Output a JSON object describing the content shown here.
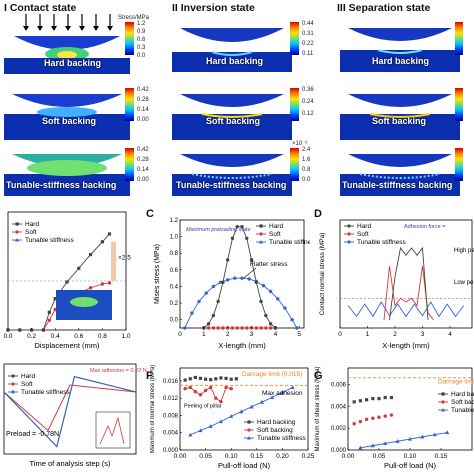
{
  "states": {
    "contact": "I Contact state",
    "inversion": "II Inversion state",
    "separation": "III Separation state"
  },
  "stress_unit": "Stress/MPa",
  "backings": {
    "hard": "Hard backing",
    "soft": "Soft backing",
    "tunable": "Tunable-stiffness backing"
  },
  "colorbars": {
    "r1c1": [
      "1.2",
      "0.9",
      "0.6",
      "0.3",
      "0.0"
    ],
    "r1c2": [
      "0.44",
      "0.31",
      "0.22",
      "0.11"
    ],
    "r1c3": [
      "0.42",
      "0.28",
      "0.14"
    ],
    "r2c1": [
      "0.42",
      "0.28",
      "0.14",
      "0.00"
    ],
    "r2c2": [
      "0.36",
      "0.24",
      "0.12"
    ],
    "r3c1": [
      "0.42",
      "0.28",
      "0.14",
      "0.00"
    ],
    "r3c2_exp": "×10⁻²",
    "r3c2": [
      "2.4",
      "1.6",
      "0.8",
      "0.0"
    ]
  },
  "panel_labels": [
    "C",
    "D",
    "F",
    "G"
  ],
  "chart_data": [
    {
      "panel": "B (partial)",
      "type": "line",
      "xlabel": "Displacement (mm)",
      "xticks": [
        "0.0",
        "0.2",
        "0.4",
        "0.6",
        "0.8",
        "1.0"
      ],
      "annotation": "×2.5",
      "series": [
        {
          "name": "Hard",
          "x": [
            0.0,
            0.1,
            0.2,
            0.3,
            0.35,
            0.4,
            0.5,
            0.6,
            0.7,
            0.8,
            0.86
          ],
          "y": [
            0,
            0,
            0,
            0,
            0.18,
            0.32,
            0.49,
            0.63,
            0.77,
            0.9,
            0.98
          ]
        },
        {
          "name": "Soft",
          "x": [
            0.0,
            0.1,
            0.2,
            0.3,
            0.35,
            0.4,
            0.5,
            0.6,
            0.7,
            0.8,
            0.86
          ],
          "y": [
            0,
            0,
            0,
            0,
            0.1,
            0.21,
            0.31,
            0.38,
            0.43,
            0.47,
            0.48
          ]
        },
        {
          "name": "Tunable stiffness",
          "x": [
            0.0,
            0.1,
            0.2,
            0.3,
            0.35,
            0.4,
            0.5,
            0.6,
            0.7,
            0.8,
            0.86
          ],
          "y": [
            0,
            0,
            0,
            0,
            0.18,
            0.32,
            0.49,
            0.63,
            0.77,
            0.9,
            0.98
          ]
        }
      ]
    },
    {
      "panel": "C",
      "type": "line",
      "xlabel": "X-length (mm)",
      "ylabel": "Mises stress (MPa)",
      "xticks": [
        "0",
        "1",
        "2",
        "3",
        "4",
        "5"
      ],
      "yticks": [
        "0.0",
        "0.2",
        "0.4",
        "0.6",
        "0.8",
        "1.0",
        "1.2"
      ],
      "xlim": [
        0,
        5.2
      ],
      "ylim": [
        0,
        1.3
      ],
      "annotations": [
        "Maximum preloading state",
        "Flatter stress"
      ],
      "series": [
        {
          "name": "Hard",
          "x": [
            1.0,
            1.2,
            1.4,
            1.6,
            1.8,
            2.0,
            2.2,
            2.4,
            2.6,
            2.8,
            3.0,
            3.2,
            3.4,
            3.6,
            3.8,
            4.0
          ],
          "y": [
            0,
            0.05,
            0.15,
            0.32,
            0.55,
            0.82,
            1.08,
            1.22,
            1.22,
            1.08,
            0.82,
            0.55,
            0.32,
            0.15,
            0.05,
            0
          ]
        },
        {
          "name": "Soft",
          "x": [
            1.0,
            1.2,
            1.4,
            1.6,
            1.8,
            2.0,
            2.2,
            2.4,
            2.6,
            2.8,
            3.0,
            3.2,
            3.4,
            3.6,
            3.8,
            4.0
          ],
          "y": [
            0,
            0,
            0,
            0,
            0,
            0,
            0,
            0,
            0,
            0,
            0,
            0,
            0,
            0,
            0,
            0
          ]
        },
        {
          "name": "Tunable stiffness",
          "x": [
            0.2,
            0.5,
            0.8,
            1.1,
            1.4,
            1.7,
            2.0,
            2.3,
            2.6,
            2.9,
            3.2,
            3.5,
            3.8,
            4.1,
            4.4,
            4.7,
            4.9
          ],
          "y": [
            0,
            0.18,
            0.32,
            0.42,
            0.5,
            0.55,
            0.58,
            0.6,
            0.6,
            0.59,
            0.56,
            0.51,
            0.44,
            0.35,
            0.24,
            0.1,
            0
          ]
        }
      ]
    },
    {
      "panel": "D",
      "type": "line",
      "xlabel": "X-length (mm)",
      "ylabel": "Contact normal stress (MPa)",
      "xticks": [
        "0",
        "1",
        "2",
        "3",
        "4"
      ],
      "xlim": [
        0,
        4.8
      ],
      "annotations": [
        "Adhesion force =",
        "High pe",
        "Low pe"
      ],
      "series": [
        {
          "name": "Hard",
          "x": [
            1.8,
            2.0,
            2.2,
            2.4,
            2.6,
            2.8,
            3.0,
            3.2
          ],
          "y": [
            0,
            0.6,
            1.0,
            0.9,
            1.0,
            0.9,
            1.0,
            0
          ]
        },
        {
          "name": "Soft",
          "x": [
            1.6,
            1.8,
            2.0,
            2.2,
            2.4,
            2.6,
            2.8,
            3.0,
            3.2,
            3.4
          ],
          "y": [
            0,
            0.75,
            0.2,
            0.3,
            0.25,
            0.3,
            0.2,
            0.75,
            0.1,
            0
          ]
        },
        {
          "name": "Tunable stiffness",
          "x": [
            0.3,
            0.6,
            0.9,
            1.2,
            1.5,
            1.8,
            2.1,
            2.4,
            2.7,
            3.0,
            3.3,
            3.6,
            3.9,
            4.2,
            4.5
          ],
          "y": [
            0.2,
            0.05,
            0.22,
            0.05,
            0.25,
            0.06,
            0.22,
            0.05,
            0.22,
            0.06,
            0.25,
            0.05,
            0.22,
            0.05,
            0.2
          ]
        }
      ]
    },
    {
      "panel": "E (partial)",
      "type": "line",
      "xlabel": "Time of analysis step (s)",
      "annotations": [
        "Max adhesion = 0.22 N",
        "Preload = -0.78N"
      ],
      "series": [
        {
          "name": "Hard",
          "x": [
            0,
            0.12,
            0.16,
            0.3
          ],
          "y": [
            0,
            -0.78,
            0.22,
            0
          ]
        },
        {
          "name": "Soft",
          "x": [
            0,
            0.1,
            0.15,
            0.3
          ],
          "y": [
            0,
            -0.55,
            0.1,
            0
          ]
        },
        {
          "name": "Tunable stiffness",
          "x": [
            0,
            0.12,
            0.16,
            0.3
          ],
          "y": [
            0,
            -0.78,
            0.22,
            0
          ]
        }
      ]
    },
    {
      "panel": "F",
      "type": "scatter",
      "xlabel": "Pull-off load (N)",
      "ylabel": "Maximum of normal stress (MPa)",
      "xticks": [
        "0.00",
        "0.05",
        "0.10",
        "0.15",
        "0.20",
        "0.25"
      ],
      "yticks": [
        "0.000",
        "0.004",
        "0.008",
        "0.012",
        "0.016"
      ],
      "xlim": [
        0,
        0.25
      ],
      "ylim": [
        0,
        0.019
      ],
      "annotations": [
        "Damage limit (0.015)",
        "Max adhesion",
        "Peeling of pillar"
      ],
      "damage_limit": 0.015,
      "series": [
        {
          "name": "Hard backing",
          "x": [
            0.01,
            0.02,
            0.03,
            0.04,
            0.05,
            0.06,
            0.07,
            0.08,
            0.09,
            0.1,
            0.11
          ],
          "y": [
            0.0162,
            0.0165,
            0.0168,
            0.0166,
            0.0164,
            0.0163,
            0.0165,
            0.0167,
            0.0166,
            0.0164,
            0.0165
          ]
        },
        {
          "name": "Soft backing",
          "x": [
            0.01,
            0.02,
            0.03,
            0.04,
            0.05,
            0.06,
            0.07,
            0.08,
            0.09,
            0.1
          ],
          "y": [
            0.0142,
            0.0145,
            0.0135,
            0.0128,
            0.0138,
            0.0145,
            0.012,
            0.0112,
            0.0145,
            0.0142
          ]
        },
        {
          "name": "Tunable stiffness",
          "x": [
            0.02,
            0.04,
            0.06,
            0.08,
            0.1,
            0.12,
            0.14,
            0.16,
            0.18,
            0.2,
            0.22
          ],
          "y": [
            0.0035,
            0.0045,
            0.0055,
            0.0066,
            0.0078,
            0.0089,
            0.01,
            0.0111,
            0.0122,
            0.0133,
            0.0145
          ]
        }
      ]
    },
    {
      "panel": "G",
      "type": "scatter",
      "xlabel": "Pull-off load (N)",
      "ylabel": "Maximum of shear stress (MPa)",
      "xticks": [
        "0.00",
        "0.05",
        "0.10",
        "0.15"
      ],
      "yticks": [
        "0.000",
        "0.002",
        "0.004",
        "0.006"
      ],
      "xlim": [
        0,
        0.2
      ],
      "ylim": [
        0,
        0.0075
      ],
      "annotations": [
        "Damage limit"
      ],
      "series": [
        {
          "name": "Hard backi",
          "x": [
            0.01,
            0.02,
            0.03,
            0.04,
            0.05,
            0.06,
            0.07
          ],
          "y": [
            0.0044,
            0.0045,
            0.0046,
            0.0047,
            0.0047,
            0.0048,
            0.0048
          ]
        },
        {
          "name": "Soft backi",
          "x": [
            0.01,
            0.02,
            0.03,
            0.04,
            0.05,
            0.06,
            0.07
          ],
          "y": [
            0.0024,
            0.0026,
            0.0028,
            0.0029,
            0.003,
            0.0031,
            0.0032
          ]
        },
        {
          "name": "Tunable s",
          "x": [
            0.02,
            0.04,
            0.06,
            0.08,
            0.1,
            0.12,
            0.14,
            0.16
          ],
          "y": [
            0.0002,
            0.0004,
            0.0006,
            0.0008,
            0.001,
            0.0012,
            0.0014,
            0.0016
          ]
        }
      ]
    }
  ]
}
